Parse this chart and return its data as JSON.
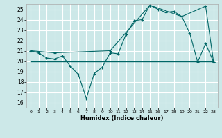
{
  "title": "",
  "xlabel": "Humidex (Indice chaleur)",
  "xlim": [
    -0.5,
    23.5
  ],
  "ylim": [
    15.5,
    25.5
  ],
  "yticks": [
    16,
    17,
    18,
    19,
    20,
    21,
    22,
    23,
    24,
    25
  ],
  "xticks": [
    0,
    1,
    2,
    3,
    4,
    5,
    6,
    7,
    8,
    9,
    10,
    11,
    12,
    13,
    14,
    15,
    16,
    17,
    18,
    19,
    20,
    21,
    22,
    23
  ],
  "background_color": "#cce8e8",
  "grid_color": "#ffffff",
  "line_color": "#006666",
  "line1_x": [
    0,
    1,
    2,
    3,
    4,
    5,
    6,
    7,
    8,
    9,
    10,
    11,
    12,
    13,
    14,
    15,
    16,
    17,
    18,
    19,
    20,
    21,
    22,
    23
  ],
  "line1_y": [
    21.0,
    20.8,
    20.3,
    20.2,
    20.5,
    19.5,
    18.7,
    16.4,
    18.8,
    19.4,
    20.8,
    20.7,
    22.6,
    23.9,
    24.0,
    25.4,
    25.0,
    24.7,
    24.8,
    24.3,
    22.7,
    19.9,
    21.7,
    19.9
  ],
  "line2_x": [
    0,
    3,
    10,
    15,
    19,
    22,
    23
  ],
  "line2_y": [
    21.0,
    20.8,
    21.0,
    25.4,
    24.3,
    25.3,
    19.9
  ],
  "line3_x": [
    0,
    23
  ],
  "line3_y": [
    20.0,
    20.0
  ]
}
